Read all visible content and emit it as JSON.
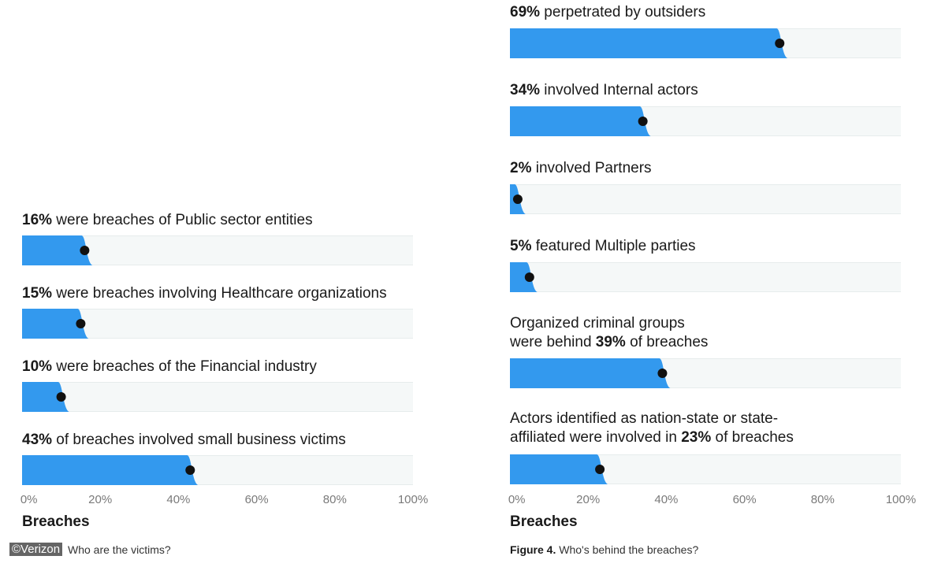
{
  "colors": {
    "fill": "#3399ee",
    "track": "#f5f8f8",
    "dot": "#111111"
  },
  "credit": "©Verizon",
  "chart_data": [
    {
      "type": "bar",
      "orientation": "horizontal",
      "xlabel": "Breaches",
      "xlim": [
        0,
        100
      ],
      "xticks": [
        "0%",
        "20%",
        "40%",
        "60%",
        "80%",
        "100%"
      ],
      "caption_bold": "",
      "caption": "Who are the victims?",
      "bars": [
        {
          "value": 16,
          "bold": "16%",
          "text": " were breaches of Public sector entities"
        },
        {
          "value": 15,
          "bold": "15%",
          "text": " were breaches involving Healthcare organizations"
        },
        {
          "value": 10,
          "bold": "10%",
          "text": " were breaches of the Financial industry"
        },
        {
          "value": 43,
          "bold": "43%",
          "text": " of breaches involved small business victims"
        }
      ]
    },
    {
      "type": "bar",
      "orientation": "horizontal",
      "xlabel": "Breaches",
      "xlim": [
        0,
        100
      ],
      "xticks": [
        "0%",
        "20%",
        "40%",
        "60%",
        "80%",
        "100%"
      ],
      "caption_bold": "Figure 4.",
      "caption": " Who's behind the breaches?",
      "bars": [
        {
          "value": 69,
          "bold": "69%",
          "text": " perpetrated by outsiders"
        },
        {
          "value": 34,
          "bold": "34%",
          "text": " involved Internal actors"
        },
        {
          "value": 2,
          "bold": "2%",
          "text": " involved Partners"
        },
        {
          "value": 5,
          "bold": "5%",
          "text": " featured Multiple parties"
        },
        {
          "value": 39,
          "pre": "Organized criminal groups",
          "pre2": "were behind ",
          "bold": "39%",
          "text": " of breaches"
        },
        {
          "value": 23,
          "pre": "Actors identified as nation-state or state-",
          "pre2": "affiliated were involved in ",
          "bold": "23%",
          "text": " of breaches"
        }
      ]
    }
  ]
}
